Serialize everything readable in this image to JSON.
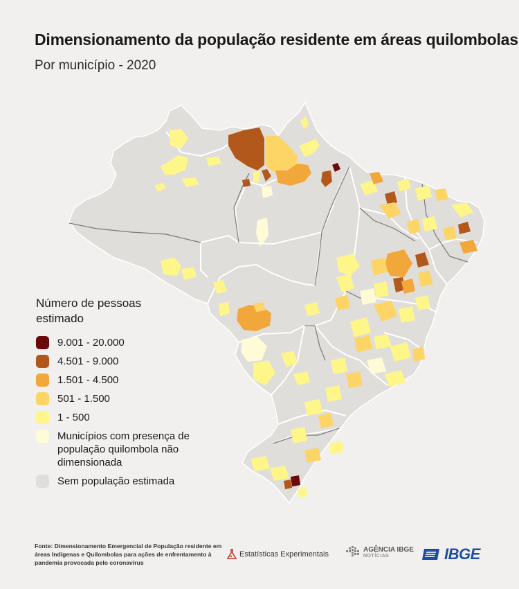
{
  "title": "Dimensionamento da população residente em áreas quilombolas",
  "subtitle": "Por município - 2020",
  "legend": {
    "title": "Número de pessoas estimado",
    "items": [
      {
        "label": "9.001 - 20.000",
        "color": "#6b0a0a"
      },
      {
        "label": "4.501 - 9.000",
        "color": "#b3581b"
      },
      {
        "label": "1.501 - 4.500",
        "color": "#f2a73b"
      },
      {
        "label": "501 - 1.500",
        "color": "#fdd466"
      },
      {
        "label": "1 - 500",
        "color": "#fff68a"
      },
      {
        "label": "Municípios com presença de\npopulação quilombola não\ndimensionada",
        "color": "#fffbd6"
      },
      {
        "label": "Sem população estimada",
        "color": "#e0dedb"
      }
    ]
  },
  "footer": {
    "source": "Fonte: Dimensionamento Emergencial de População residente em áreas Indígenas e Quilombolas para ações de enfrentamento à pandemia provocada pelo coronavírus",
    "logo_estatisticas": "Estatísticas Experimentais",
    "logo_agencia": "AGÊNCIA IBGE",
    "logo_agencia_sub": "NOTÍCIAS",
    "logo_ibge": "IBGE"
  },
  "colors": {
    "background": "#f1f0ee",
    "land": "#e0dedb",
    "state_border": "#ffffff",
    "region_border": "#777777"
  }
}
